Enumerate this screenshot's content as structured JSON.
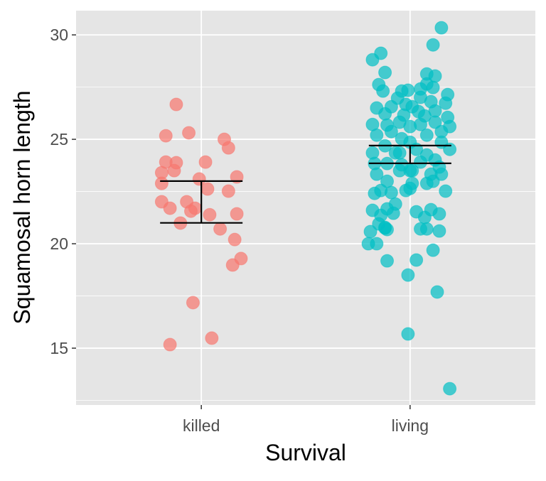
{
  "chart_data": {
    "type": "scatter",
    "subtype": "jitter with error bars",
    "xlabel": "Survival",
    "ylabel": "Squamosal horn length",
    "categories": [
      "killed",
      "living"
    ],
    "ylim": [
      12.28,
      31.16
    ],
    "yticks": [
      15,
      20,
      25,
      30
    ],
    "grid": true,
    "colors": {
      "killed": "#F8766D",
      "living": "#00BFC4",
      "panel": "#E5E5E5",
      "grid": "#FFFFFF",
      "errorbar": "#000000"
    },
    "errorbars": [
      {
        "category": "killed",
        "low": 21.0,
        "high": 23.0
      },
      {
        "category": "living",
        "low": 23.85,
        "high": 24.7
      }
    ],
    "series": [
      {
        "category": "killed",
        "jitter": [
          -0.12,
          -0.17,
          -0.06,
          0.11,
          0.13,
          -0.17,
          -0.12,
          0.02,
          -0.19,
          -0.13,
          -0.01,
          0.17,
          -0.19,
          0.03,
          0.13,
          -0.19,
          -0.07,
          -0.15,
          -0.03,
          -0.05,
          0.04,
          0.17,
          -0.1,
          0.09,
          0.16,
          0.19,
          0.15,
          -0.04,
          0.05,
          -0.15
        ],
        "values": [
          26.67,
          25.17,
          25.31,
          25.0,
          24.59,
          23.91,
          23.88,
          23.91,
          23.4,
          23.5,
          23.1,
          23.2,
          22.89,
          22.62,
          22.52,
          22.01,
          22.01,
          21.7,
          21.7,
          21.56,
          21.39,
          21.43,
          20.99,
          20.71,
          20.2,
          19.29,
          18.98,
          17.18,
          15.48,
          15.17
        ]
      },
      {
        "category": "living",
        "jitter": [
          0.15,
          0.11,
          -0.14,
          -0.18,
          -0.12,
          0.08,
          0.12,
          -0.15,
          -0.13,
          0.08,
          0.11,
          0.05,
          0.18,
          -0.04,
          -0.01,
          0.05,
          -0.06,
          -0.16,
          -0.02,
          0.01,
          0.1,
          0.17,
          -0.09,
          0.12,
          0.04,
          -0.12,
          -0.03,
          0.07,
          0.18,
          -0.18,
          -0.11,
          -0.05,
          0,
          0.05,
          0.12,
          0.19,
          0.15,
          -0.16,
          -0.09,
          -0.04,
          0.08,
          0,
          -0.12,
          0.03,
          0.15,
          0.19,
          -0.18,
          -0.07,
          0.08,
          0.12,
          -0.17,
          -0.11,
          -0.04,
          0.05,
          0.14,
          -0.16,
          -0.05,
          0,
          0.1,
          0.15,
          -0.11,
          0.01,
          0.08,
          -0.14,
          -0.02,
          0.11,
          -0.17,
          -0.09,
          0,
          0.17,
          -0.18,
          -0.11,
          -0.14,
          -0.07,
          0.03,
          0.07,
          0.14,
          0.1,
          -0.15,
          -0.11,
          -0.19,
          -0.12,
          -0.2,
          -0.16,
          0.08,
          0.11,
          0.03,
          -0.11,
          0.14,
          -0.01,
          0.13,
          -0.01,
          0.19,
          -0.12,
          0.05,
          -0.08,
          0.01,
          -0.05
        ],
        "values": [
          30.34,
          29.52,
          29.12,
          28.81,
          28.2,
          28.13,
          28.03,
          27.62,
          27.31,
          27.65,
          27.48,
          27.41,
          27.14,
          27.31,
          27.35,
          27.01,
          26.97,
          26.5,
          26.67,
          26.56,
          26.8,
          26.73,
          26.56,
          26.36,
          26.33,
          26.22,
          26.16,
          26.12,
          26.05,
          25.71,
          25.68,
          25.82,
          25.61,
          25.71,
          25.82,
          25.61,
          25.37,
          25.2,
          25.37,
          25.03,
          25.2,
          24.86,
          24.69,
          24.52,
          24.86,
          24.52,
          24.35,
          24.35,
          24.25,
          24.01,
          23.84,
          23.84,
          23.78,
          23.91,
          23.67,
          23.33,
          23.5,
          23.5,
          23.33,
          23.33,
          22.99,
          22.89,
          22.89,
          22.55,
          22.55,
          22.99,
          22.41,
          22.45,
          22.65,
          22.52,
          21.6,
          21.67,
          21.36,
          21.9,
          21.53,
          21.26,
          21.43,
          21.63,
          20.95,
          20.68,
          20.58,
          20.75,
          20.0,
          20.0,
          20.71,
          19.69,
          19.22,
          19.18,
          20.61,
          18.5,
          17.69,
          15.68,
          13.06,
          20.78,
          20.71,
          21.46,
          23.5,
          24.35
        ]
      }
    ]
  }
}
